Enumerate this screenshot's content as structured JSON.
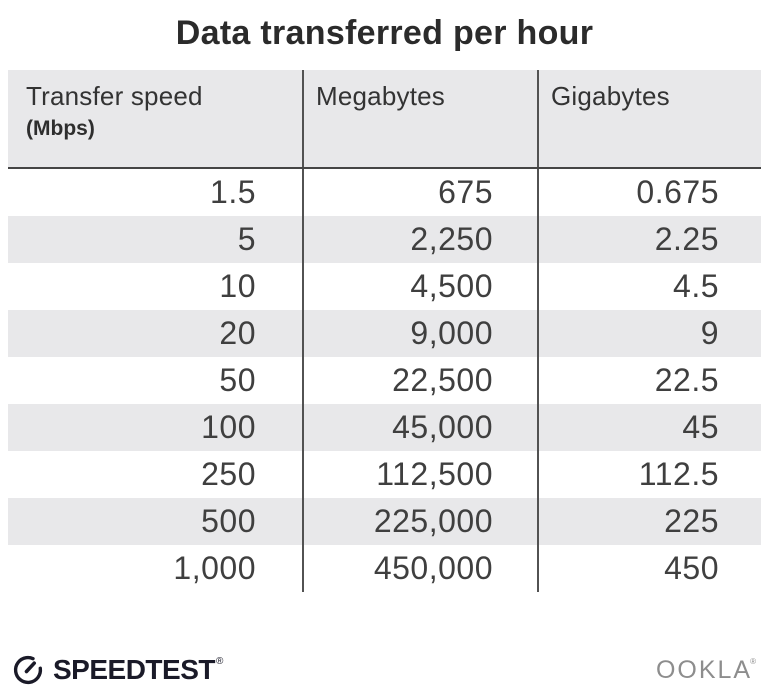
{
  "title": "Data transferred per hour",
  "chart_data": {
    "type": "table",
    "title": "Data transferred per hour",
    "columns": [
      {
        "label": "Transfer speed",
        "sublabel": "(Mbps)"
      },
      {
        "label": "Megabytes",
        "sublabel": ""
      },
      {
        "label": "Gigabytes",
        "sublabel": ""
      }
    ],
    "rows": [
      [
        "1.5",
        "675",
        "0.675"
      ],
      [
        "5",
        "2,250",
        "2.25"
      ],
      [
        "10",
        "4,500",
        "4.5"
      ],
      [
        "20",
        "9,000",
        "9"
      ],
      [
        "50",
        "22,500",
        "22.5"
      ],
      [
        "100",
        "45,000",
        "45"
      ],
      [
        "250",
        "112,500",
        "112.5"
      ],
      [
        "500",
        "225,000",
        "225"
      ],
      [
        "1,000",
        "450,000",
        "450"
      ]
    ],
    "layout": {
      "striped_rows": true,
      "stripe_color": "#e8e8ea",
      "header_bg": "#e8e8ea",
      "divider_color": "#525252",
      "header_underline_color": "#454545"
    }
  },
  "footer": {
    "speedtest_label": "SPEEDTEST",
    "speedtest_mark": "®",
    "ookla_label": "OOKLA",
    "ookla_mark": "®"
  },
  "colors": {
    "title_text": "#2b2b2b",
    "cell_text": "#3f3f3f",
    "speedtest_brand": "#1a1a28",
    "ookla_gray": "#8d8d8d"
  }
}
